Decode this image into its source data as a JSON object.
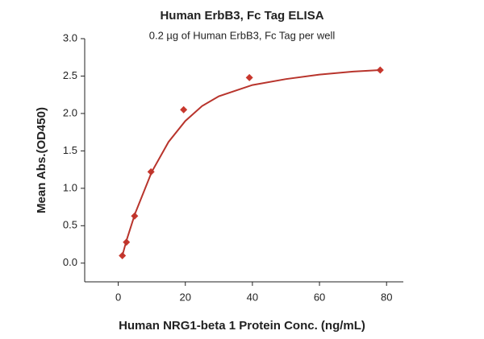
{
  "chart_data": {
    "type": "scatter",
    "title": "Human ErbB3, Fc Tag ELISA",
    "subtitle": "0.2 µg of Human ErbB3, Fc Tag per well",
    "x_label": "Human NRG1-beta 1 Protein Conc. (ng/mL)",
    "y_label": "Mean Abs.(OD450)",
    "xlim": [
      -10,
      85
    ],
    "ylim": [
      -0.25,
      3.0
    ],
    "xticks": [
      0,
      20,
      40,
      60,
      80
    ],
    "yticks": [
      {
        "value": 0,
        "label": "0.0"
      },
      0.5,
      {
        "value": 1,
        "label": "1.0"
      },
      1.5,
      {
        "value": 2,
        "label": "2.0"
      },
      2.5,
      {
        "value": 3,
        "label": "3.0"
      }
    ],
    "series": [
      {
        "kind": "points",
        "color": "#c8372d",
        "x": [
          1.22,
          2.44,
          4.88,
          9.77,
          19.5,
          39.1,
          78.1
        ],
        "values": [
          0.1,
          0.28,
          0.63,
          1.22,
          2.05,
          2.48,
          2.58
        ]
      },
      {
        "kind": "curve",
        "color": "#b8342c",
        "x": [
          1.22,
          2.44,
          5,
          10,
          15,
          20,
          25,
          30,
          40,
          50,
          60,
          70,
          78.1
        ],
        "values": [
          0.1,
          0.3,
          0.66,
          1.22,
          1.62,
          1.9,
          2.1,
          2.23,
          2.38,
          2.46,
          2.52,
          2.56,
          2.58
        ]
      }
    ]
  }
}
